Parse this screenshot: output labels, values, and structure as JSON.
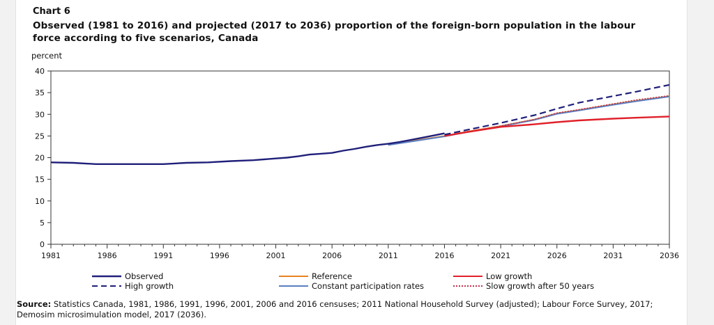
{
  "chart_label": "Chart 6",
  "title": "Observed (1981 to 2016) and projected (2017 to 2036) proportion of the foreign-born population in the labour force according to five scenarios, Canada",
  "source": {
    "label": "Source:",
    "text": "Statistics Canada, 1981, 1986, 1991, 1996, 2001, 2006 and 2016 censuses; 2011 National Household Survey (adjusted); Labour Force Survey, 2017; Demosim microsimulation model, 2017 (2036)."
  },
  "chart_data": {
    "type": "line",
    "ylabel": "percent",
    "xlabel": "",
    "xlim": [
      1981,
      2036
    ],
    "ylim": [
      0,
      40
    ],
    "x_ticks": [
      1981,
      1986,
      1991,
      1996,
      2001,
      2006,
      2011,
      2016,
      2021,
      2026,
      2031,
      2036
    ],
    "y_ticks": [
      0,
      5,
      10,
      15,
      20,
      25,
      30,
      35,
      40
    ],
    "grid": false,
    "legend": "bottom",
    "series": [
      {
        "name": "Observed",
        "color": "#1f1f7a",
        "dash": "solid",
        "points": [
          [
            1981,
            18.9
          ],
          [
            1983,
            18.8
          ],
          [
            1985,
            18.5
          ],
          [
            1987,
            18.5
          ],
          [
            1989,
            18.5
          ],
          [
            1991,
            18.5
          ],
          [
            1993,
            18.8
          ],
          [
            1995,
            18.9
          ],
          [
            1997,
            19.2
          ],
          [
            1999,
            19.4
          ],
          [
            2001,
            19.8
          ],
          [
            2002,
            20.0
          ],
          [
            2003,
            20.3
          ],
          [
            2004,
            20.7
          ],
          [
            2005,
            20.9
          ],
          [
            2006,
            21.1
          ],
          [
            2007,
            21.6
          ],
          [
            2008,
            22.0
          ],
          [
            2009,
            22.5
          ],
          [
            2010,
            22.9
          ],
          [
            2011,
            23.2
          ],
          [
            2012,
            23.6
          ],
          [
            2013,
            24.1
          ],
          [
            2014,
            24.6
          ],
          [
            2015,
            25.1
          ],
          [
            2016,
            25.6
          ]
        ]
      },
      {
        "name": "Reference",
        "color": "#e8821e",
        "dash": "solid",
        "points": [
          [
            2011,
            22.9
          ],
          [
            2013,
            23.8
          ],
          [
            2016,
            25.0
          ],
          [
            2018,
            26.0
          ],
          [
            2021,
            27.3
          ],
          [
            2024,
            28.8
          ],
          [
            2026,
            30.2
          ],
          [
            2028,
            31.0
          ],
          [
            2031,
            32.3
          ],
          [
            2033,
            33.1
          ],
          [
            2036,
            34.2
          ]
        ]
      },
      {
        "name": "Low growth",
        "color": "#e0202a",
        "dash": "solid",
        "points": [
          [
            2016,
            25.0
          ],
          [
            2018,
            25.9
          ],
          [
            2021,
            27.1
          ],
          [
            2024,
            27.7
          ],
          [
            2026,
            28.2
          ],
          [
            2028,
            28.6
          ],
          [
            2031,
            29.0
          ],
          [
            2033,
            29.2
          ],
          [
            2036,
            29.5
          ]
        ]
      },
      {
        "name": "High growth",
        "color": "#1f1f7a",
        "dash": "dashed",
        "points": [
          [
            2016,
            25.3
          ],
          [
            2018,
            26.4
          ],
          [
            2021,
            28.0
          ],
          [
            2024,
            29.8
          ],
          [
            2026,
            31.3
          ],
          [
            2028,
            32.7
          ],
          [
            2031,
            34.2
          ],
          [
            2033,
            35.2
          ],
          [
            2036,
            36.8
          ]
        ]
      },
      {
        "name": "Constant participation rates",
        "color": "#5a7fc0",
        "dash": "solid",
        "points": [
          [
            2011,
            22.9
          ],
          [
            2013,
            23.7
          ],
          [
            2016,
            24.9
          ],
          [
            2018,
            25.9
          ],
          [
            2021,
            27.2
          ],
          [
            2024,
            28.7
          ],
          [
            2026,
            30.1
          ],
          [
            2028,
            30.9
          ],
          [
            2031,
            32.2
          ],
          [
            2033,
            33.0
          ],
          [
            2036,
            34.1
          ]
        ]
      },
      {
        "name": "Slow growth after 50 years",
        "color": "#c0304a",
        "dash": "dotted",
        "points": [
          [
            2016,
            25.0
          ],
          [
            2018,
            25.9
          ],
          [
            2021,
            27.3
          ],
          [
            2024,
            28.8
          ],
          [
            2026,
            30.3
          ],
          [
            2028,
            31.1
          ],
          [
            2031,
            32.4
          ],
          [
            2033,
            33.3
          ],
          [
            2036,
            34.3
          ]
        ]
      }
    ]
  }
}
